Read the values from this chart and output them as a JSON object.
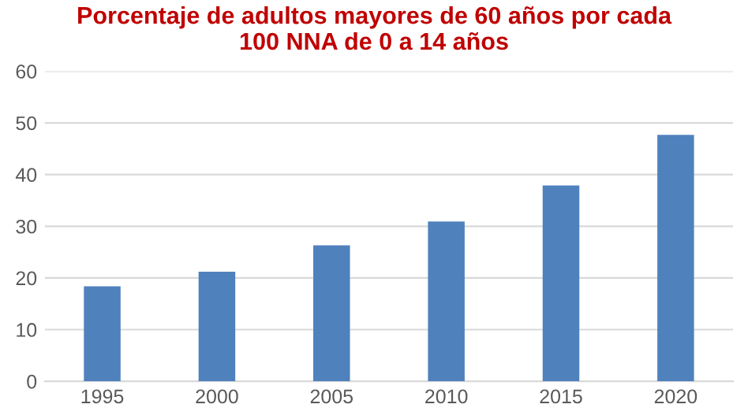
{
  "chart_data": {
    "type": "bar",
    "title": "Porcentaje de adultos mayores de 60 años por cada\n100 NNA de 0 a 14 años",
    "categories": [
      "1995",
      "2000",
      "2005",
      "2010",
      "2015",
      "2020"
    ],
    "values": [
      18.4,
      21.2,
      26.3,
      30.9,
      37.9,
      47.7
    ],
    "color": "#4f81bd",
    "ylim": [
      0,
      60
    ],
    "yticks": [
      0,
      10,
      20,
      30,
      40,
      50,
      60
    ],
    "grid": "y",
    "legend": false
  }
}
